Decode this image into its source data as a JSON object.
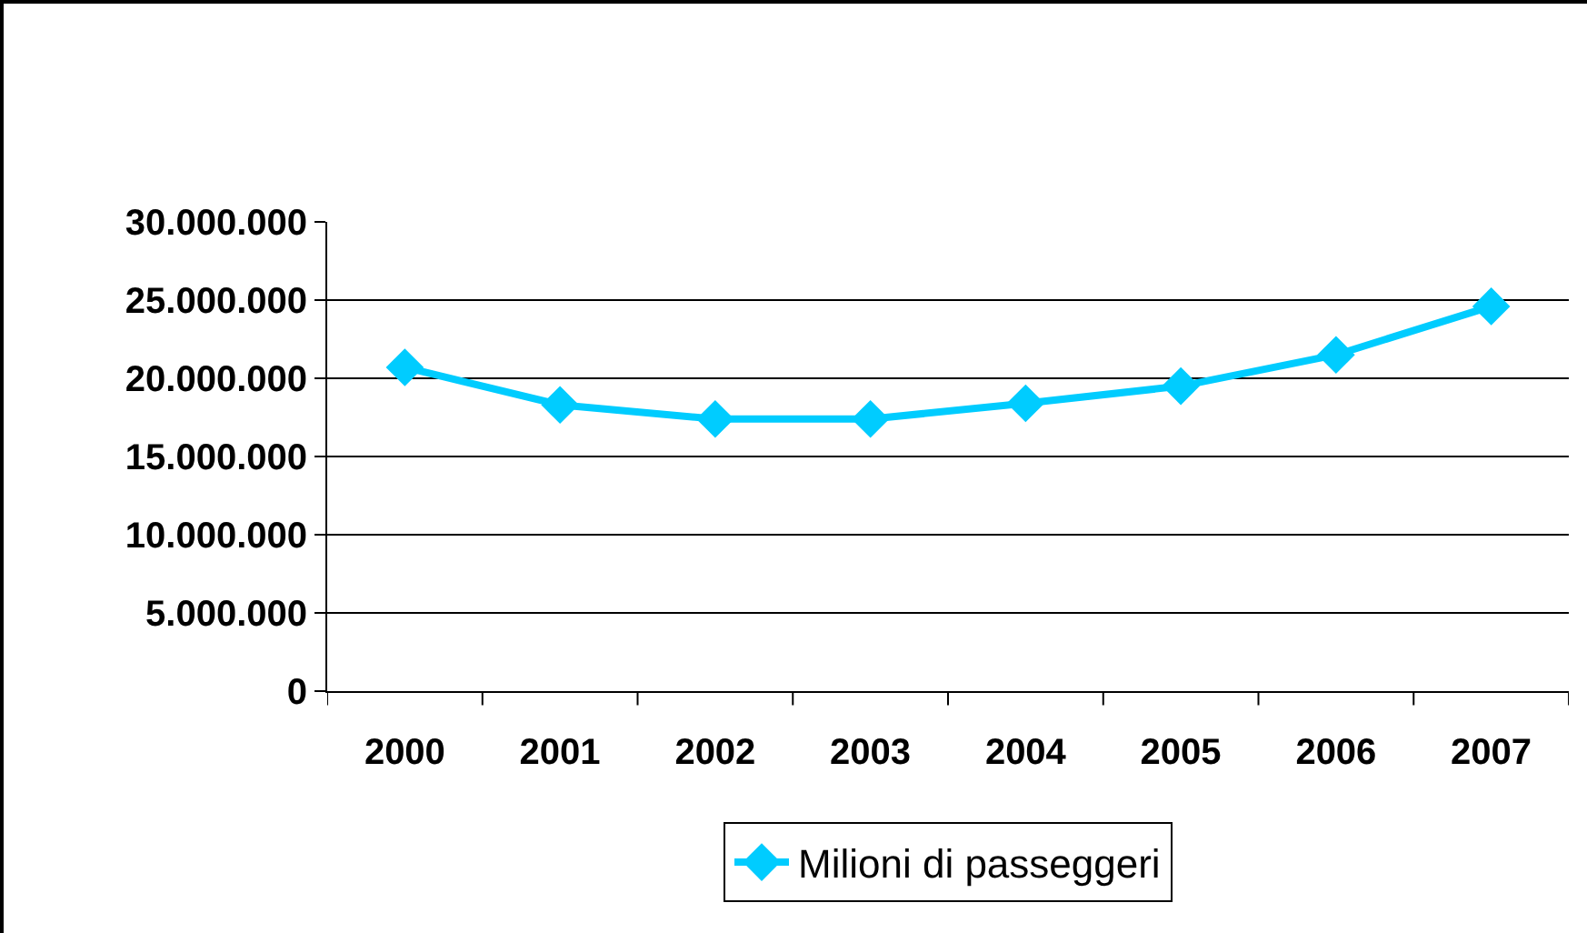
{
  "chart_data": {
    "type": "line",
    "categories": [
      "2000",
      "2001",
      "2002",
      "2003",
      "2004",
      "2005",
      "2006",
      "2007"
    ],
    "series": [
      {
        "name": "Milioni di passeggeri",
        "color": "#00ccff",
        "values": [
          20700000,
          18300000,
          17400000,
          17400000,
          18400000,
          19500000,
          21500000,
          24600000
        ]
      }
    ],
    "ylim": [
      0,
      30000000
    ],
    "yticks": [
      0,
      {
        "value": 5000000,
        "label": "5.000.000"
      },
      {
        "value": 10000000,
        "label": "10.000.000"
      },
      {
        "value": 15000000,
        "label": "15.000.000"
      },
      {
        "value": 20000000,
        "label": "20.000.000"
      },
      {
        "value": 25000000,
        "label": "25.000.000"
      },
      {
        "value": 30000000,
        "label": "30.000.000"
      }
    ],
    "grid": "y",
    "legend": "bottom",
    "marker": "diamond",
    "line_style": "solid"
  }
}
